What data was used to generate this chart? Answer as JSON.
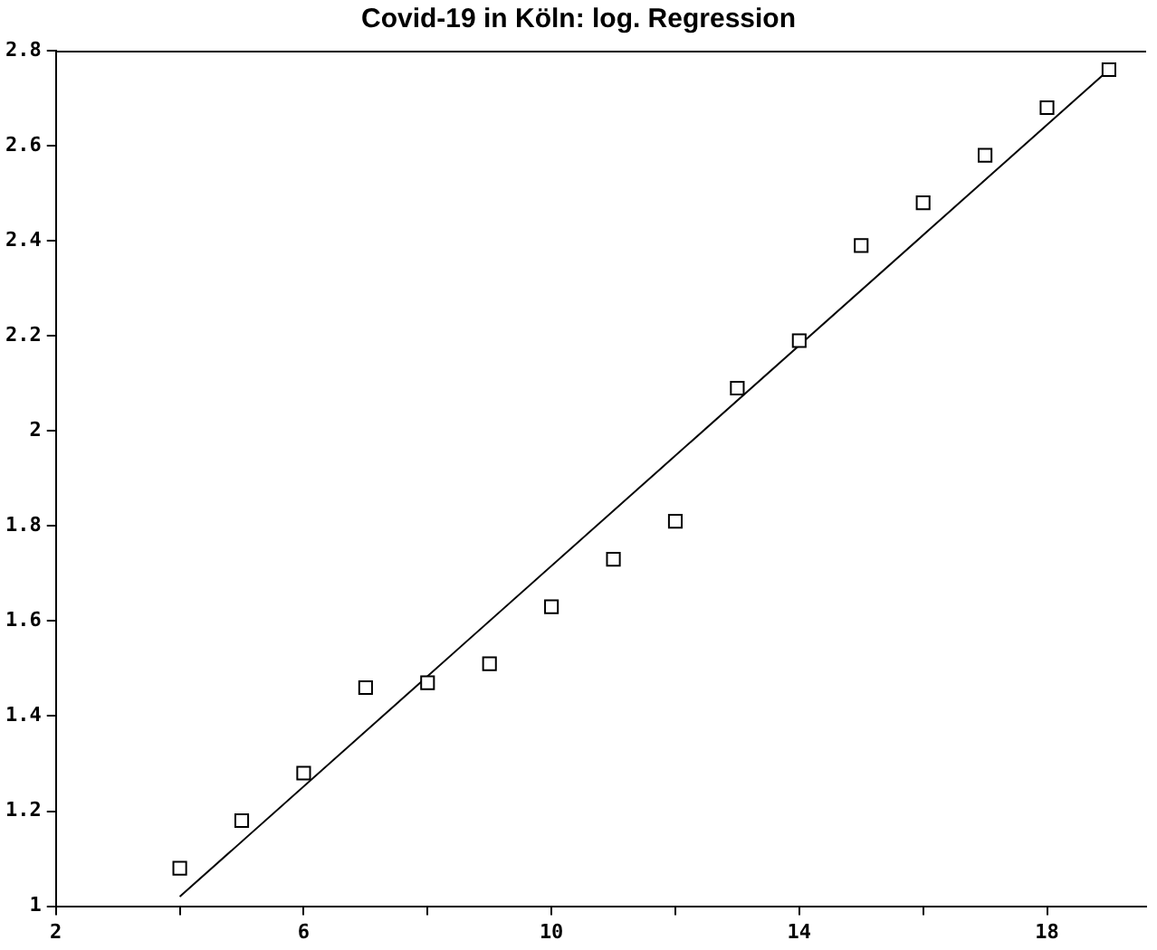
{
  "chart_data": {
    "type": "scatter",
    "title": "Covid-19 in Köln: log. Regression",
    "marker": "square",
    "grid": false,
    "xlim": [
      2,
      19.6
    ],
    "xticks": [
      2,
      {
        "value": 4,
        "label": null
      },
      6,
      {
        "value": 8,
        "label": null
      },
      10,
      {
        "value": 12,
        "label": null
      },
      14,
      {
        "value": 16,
        "label": null
      },
      18
    ],
    "ylim": [
      1,
      2.8
    ],
    "yticks": [
      1,
      1.2,
      1.4,
      1.6,
      1.8,
      2,
      2.2,
      2.4,
      2.6,
      2.8
    ],
    "series": [
      {
        "color": "#000000",
        "x": [
          4,
          5,
          6,
          7,
          8,
          9,
          10,
          11,
          12,
          13,
          14,
          15,
          16,
          17,
          18,
          19
        ],
        "values": [
          1.08,
          1.18,
          1.28,
          1.46,
          1.47,
          1.51,
          1.63,
          1.73,
          1.81,
          2.09,
          2.19,
          2.39,
          2.48,
          2.58,
          2.68,
          2.76
        ]
      },
      {
        "type": "line",
        "color": "#000000",
        "marker": "none",
        "x": [
          4,
          19
        ],
        "values": [
          1.02,
          2.76
        ]
      }
    ]
  }
}
